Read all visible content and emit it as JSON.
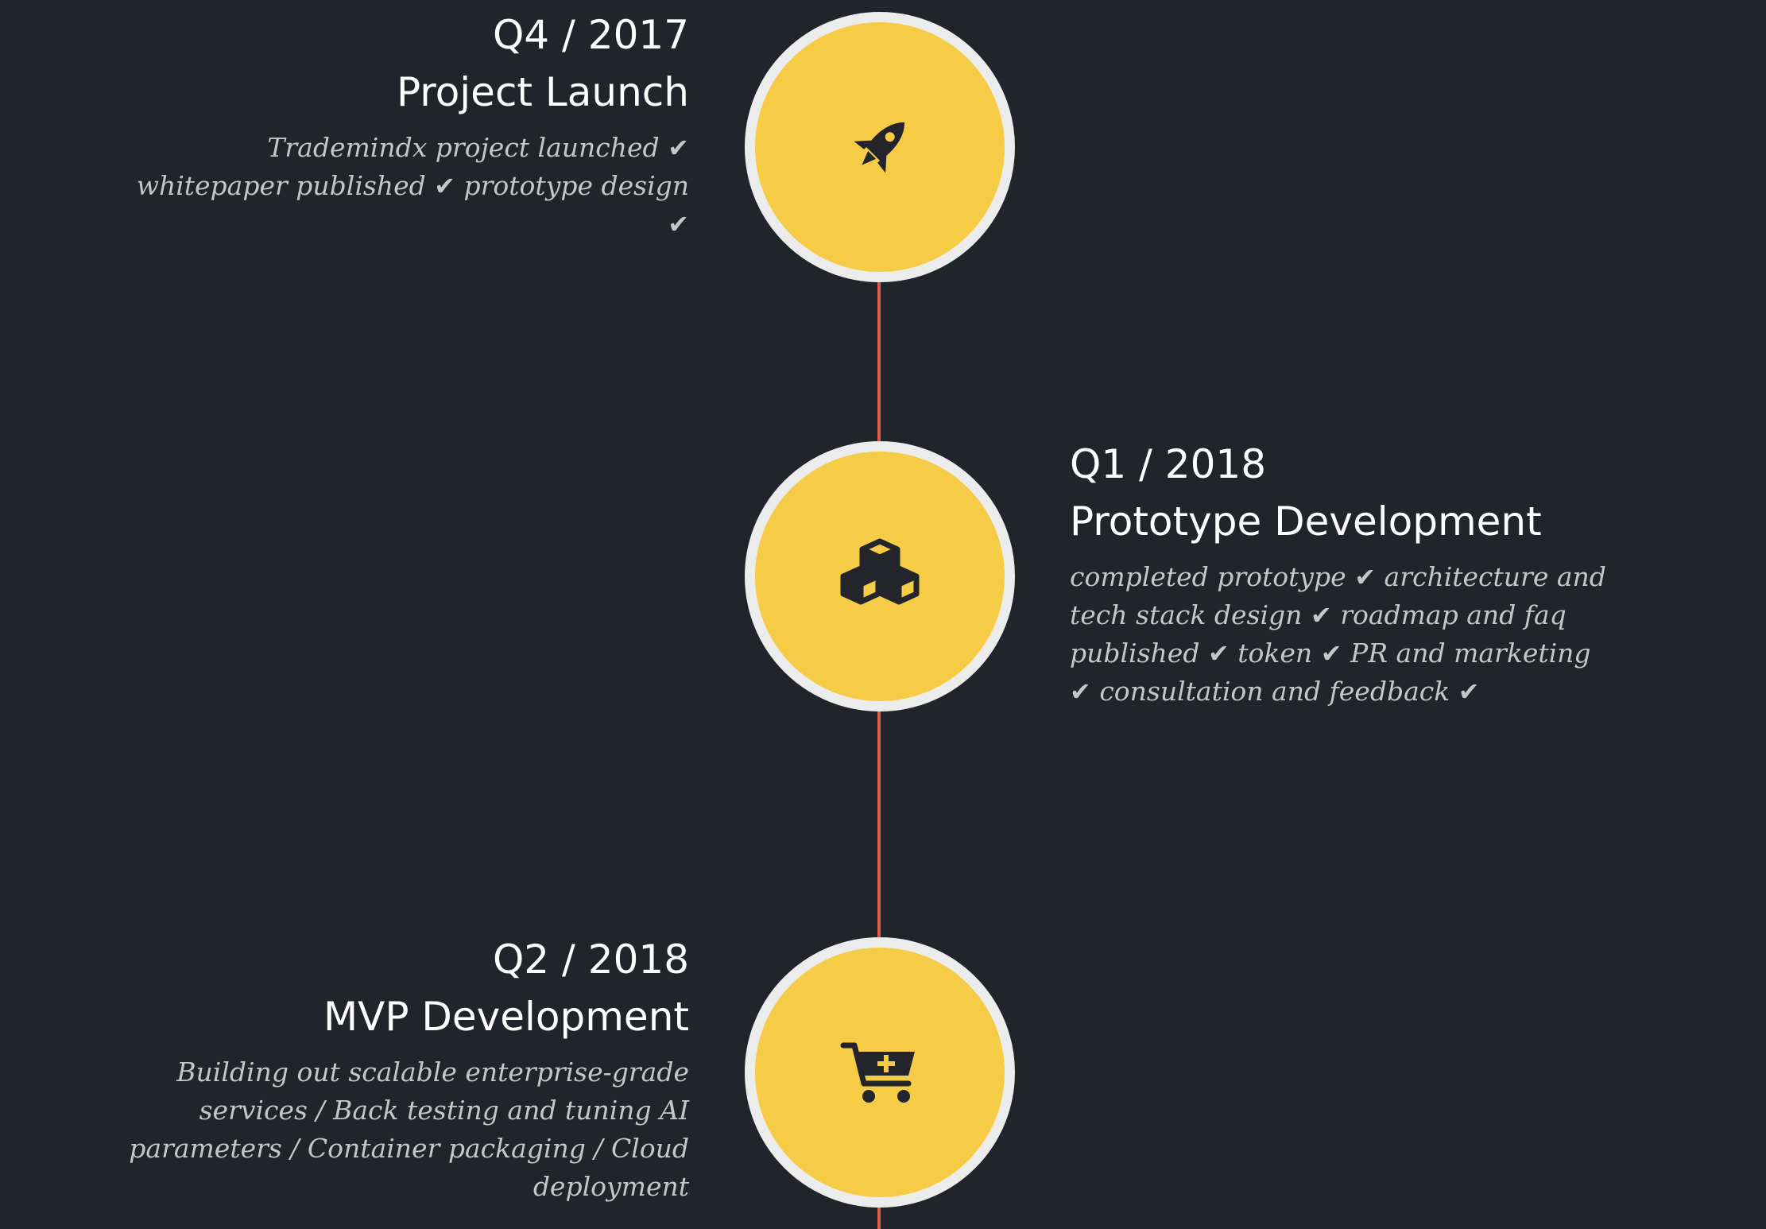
{
  "colors": {
    "background": "#212428",
    "node_fill": "#f6cb45",
    "node_ring": "#ececec",
    "line": "#e05a4c",
    "icon": "#23252a"
  },
  "milestones": [
    {
      "quarter": "Q4 / 2017",
      "title": "Project Launch",
      "icon": "rocket-icon",
      "desc_parts": [
        "Trademindx project launched",
        "whitepaper published",
        "prototype design"
      ]
    },
    {
      "quarter": "Q1 / 2018",
      "title": "Prototype Development",
      "icon": "cubes-icon",
      "desc_parts": [
        "completed prototype",
        "architecture and tech stack design",
        "roadmap and faq published",
        "token",
        "PR and marketing",
        "consultation and feedback"
      ]
    },
    {
      "quarter": "Q2 / 2018",
      "title": "MVP Development",
      "icon": "cart-plus-icon",
      "description": "Building out scalable enterprise-grade services / Back testing and tuning AI parameters / Container packaging / Cloud deployment"
    }
  ]
}
